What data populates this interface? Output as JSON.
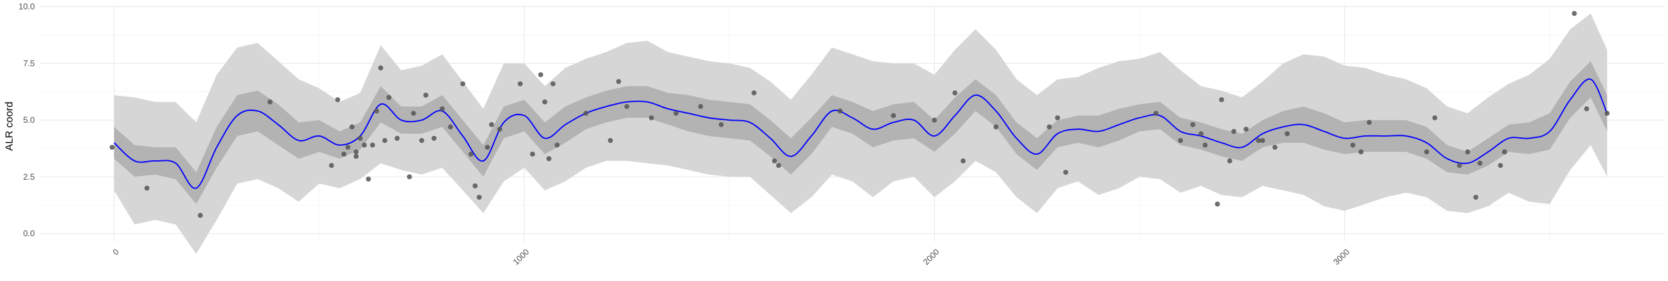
{
  "chart_data": {
    "type": "scatter",
    "title": "",
    "xlabel": "",
    "ylabel": "ALR coord",
    "xlim": [
      -180,
      3780
    ],
    "ylim": [
      -0.35,
      10.05
    ],
    "x_ticks": [
      0,
      1000,
      2000,
      3000
    ],
    "x_tick_labels": [
      "0",
      "1000",
      "2000",
      "3000"
    ],
    "y_ticks": [
      0.0,
      2.5,
      5.0,
      7.5,
      10.0
    ],
    "y_tick_labels": [
      "0.0",
      "2.5",
      "5.0",
      "7.5",
      "10.0"
    ],
    "grid": true,
    "legend": "none",
    "colors": {
      "line": "#0000ff",
      "inner_band": "#b3b3b3",
      "outer_band": "#d6d6d6",
      "points": "#555555",
      "grid_major": "#ebebeb",
      "grid_minor": "#f5f5f5",
      "tick_text": "#4d4d4d"
    },
    "series": [
      {
        "kind": "points",
        "x": [
          -5,
          80,
          210,
          380,
          530,
          545,
          560,
          570,
          580,
          590,
          590,
          600,
          610,
          620,
          630,
          640,
          650,
          660,
          670,
          690,
          720,
          730,
          750,
          760,
          780,
          800,
          820,
          850,
          870,
          880,
          890,
          910,
          920,
          940,
          990,
          1020,
          1040,
          1050,
          1060,
          1070,
          1080,
          1150,
          1210,
          1230,
          1250,
          1310,
          1370,
          1430,
          1480,
          1560,
          1610,
          1620,
          1770,
          1900,
          2000,
          2050,
          2070,
          2150,
          2280,
          2300,
          2320,
          2540,
          2600,
          2630,
          2650,
          2660,
          2690,
          2700,
          2720,
          2730,
          2760,
          2790,
          2800,
          2830,
          2860,
          3020,
          3040,
          3060,
          3200,
          3220,
          3280,
          3300,
          3320,
          3330,
          3380,
          3390,
          3560,
          3590,
          3640
        ],
        "y": [
          3.8,
          2.0,
          0.8,
          5.8,
          3.0,
          5.9,
          3.5,
          3.8,
          4.7,
          3.4,
          3.6,
          4.2,
          3.9,
          2.4,
          3.9,
          5.4,
          7.3,
          4.1,
          6.0,
          4.2,
          2.5,
          5.3,
          4.1,
          6.1,
          4.2,
          5.5,
          4.7,
          6.6,
          3.5,
          2.1,
          1.6,
          3.8,
          4.8,
          4.6,
          6.6,
          3.5,
          7.0,
          5.8,
          3.3,
          6.6,
          3.9,
          5.3,
          4.1,
          6.7,
          5.6,
          5.1,
          5.3,
          5.6,
          4.8,
          6.2,
          3.2,
          3.0,
          5.4,
          5.2,
          5.0,
          6.2,
          3.2,
          4.7,
          4.7,
          5.1,
          2.7,
          5.3,
          4.1,
          4.8,
          4.4,
          3.9,
          1.3,
          5.9,
          3.2,
          4.5,
          4.6,
          4.1,
          4.1,
          3.8,
          4.4,
          3.9,
          3.6,
          4.9,
          3.6,
          5.1,
          3.0,
          3.6,
          1.6,
          3.1,
          3.0,
          3.6,
          9.7,
          5.5,
          5.3
        ]
      },
      {
        "kind": "line",
        "x": [
          0,
          50,
          100,
          150,
          200,
          250,
          300,
          350,
          400,
          450,
          500,
          550,
          600,
          650,
          700,
          750,
          800,
          850,
          900,
          950,
          1000,
          1050,
          1100,
          1150,
          1200,
          1250,
          1300,
          1350,
          1400,
          1450,
          1500,
          1550,
          1600,
          1650,
          1700,
          1750,
          1800,
          1850,
          1900,
          1950,
          2000,
          2050,
          2100,
          2150,
          2200,
          2250,
          2300,
          2350,
          2400,
          2450,
          2500,
          2550,
          2600,
          2650,
          2700,
          2750,
          2800,
          2850,
          2900,
          2950,
          3000,
          3050,
          3100,
          3150,
          3200,
          3250,
          3300,
          3350,
          3400,
          3450,
          3500,
          3550,
          3600,
          3640
        ],
        "y": [
          4.0,
          3.2,
          3.2,
          3.1,
          2.0,
          3.8,
          5.2,
          5.4,
          4.8,
          4.1,
          4.3,
          3.9,
          4.3,
          5.7,
          5.0,
          5.0,
          5.4,
          4.3,
          3.2,
          4.9,
          5.2,
          4.2,
          4.8,
          5.3,
          5.6,
          5.8,
          5.8,
          5.5,
          5.3,
          5.1,
          5.0,
          4.9,
          4.2,
          3.4,
          4.3,
          5.4,
          5.1,
          4.6,
          4.9,
          5.0,
          4.3,
          5.2,
          6.1,
          5.4,
          4.2,
          3.5,
          4.4,
          4.6,
          4.5,
          4.8,
          5.1,
          5.2,
          4.5,
          4.3,
          4.0,
          3.8,
          4.4,
          4.7,
          4.8,
          4.5,
          4.2,
          4.3,
          4.3,
          4.3,
          4.0,
          3.3,
          3.1,
          3.6,
          4.2,
          4.2,
          4.5,
          5.9,
          6.8,
          5.3
        ]
      },
      {
        "kind": "band",
        "name_level": "inner",
        "x": [
          0,
          50,
          100,
          150,
          200,
          250,
          300,
          350,
          400,
          450,
          500,
          550,
          600,
          650,
          700,
          750,
          800,
          850,
          900,
          950,
          1000,
          1050,
          1100,
          1150,
          1200,
          1250,
          1300,
          1350,
          1400,
          1450,
          1500,
          1550,
          1600,
          1650,
          1700,
          1750,
          1800,
          1850,
          1900,
          1950,
          2000,
          2050,
          2100,
          2150,
          2200,
          2250,
          2300,
          2350,
          2400,
          2450,
          2500,
          2550,
          2600,
          2650,
          2700,
          2750,
          2800,
          2850,
          2900,
          2950,
          3000,
          3050,
          3100,
          3150,
          3200,
          3250,
          3300,
          3350,
          3400,
          3450,
          3500,
          3550,
          3600,
          3640
        ],
        "lower": [
          3.3,
          2.5,
          2.6,
          2.4,
          1.3,
          2.9,
          4.3,
          4.5,
          3.9,
          3.3,
          3.6,
          3.3,
          3.7,
          4.9,
          4.4,
          4.4,
          4.7,
          3.6,
          2.5,
          4.2,
          4.5,
          3.5,
          4.0,
          4.6,
          4.9,
          5.1,
          5.1,
          4.8,
          4.5,
          4.3,
          4.2,
          4.1,
          3.4,
          2.6,
          3.5,
          4.7,
          4.4,
          3.8,
          4.1,
          4.2,
          3.6,
          4.4,
          5.4,
          4.7,
          3.5,
          2.8,
          3.8,
          4.0,
          3.8,
          4.1,
          4.5,
          4.6,
          3.9,
          3.7,
          3.4,
          3.2,
          3.8,
          4.0,
          4.0,
          3.7,
          3.5,
          3.6,
          3.6,
          3.6,
          3.3,
          2.7,
          2.6,
          3.0,
          3.6,
          3.5,
          3.7,
          5.1,
          6.0,
          4.5
        ],
        "upper": [
          4.7,
          3.9,
          3.8,
          3.8,
          2.7,
          4.7,
          6.1,
          6.3,
          5.7,
          4.9,
          5.0,
          4.5,
          4.9,
          6.5,
          5.6,
          5.6,
          6.1,
          5.0,
          3.9,
          5.6,
          5.9,
          4.9,
          5.6,
          6.0,
          6.3,
          6.5,
          6.5,
          6.2,
          6.1,
          5.9,
          5.8,
          5.7,
          5.0,
          4.2,
          5.1,
          6.1,
          5.8,
          5.4,
          5.7,
          5.8,
          5.0,
          6.0,
          6.8,
          6.1,
          4.9,
          4.2,
          5.0,
          5.2,
          5.2,
          5.5,
          5.7,
          5.8,
          5.1,
          4.9,
          4.6,
          4.4,
          5.0,
          5.4,
          5.6,
          5.3,
          4.9,
          5.0,
          5.0,
          5.0,
          4.7,
          3.9,
          3.6,
          4.2,
          4.8,
          4.9,
          5.3,
          6.7,
          7.6,
          6.1
        ]
      },
      {
        "kind": "band",
        "name_level": "outer",
        "x": [
          0,
          50,
          100,
          150,
          200,
          250,
          300,
          350,
          400,
          450,
          500,
          550,
          600,
          650,
          700,
          750,
          800,
          850,
          900,
          950,
          1000,
          1050,
          1100,
          1150,
          1200,
          1250,
          1300,
          1350,
          1400,
          1450,
          1500,
          1550,
          1600,
          1650,
          1700,
          1750,
          1800,
          1850,
          1900,
          1950,
          2000,
          2050,
          2100,
          2150,
          2200,
          2250,
          2300,
          2350,
          2400,
          2450,
          2500,
          2550,
          2600,
          2650,
          2700,
          2750,
          2800,
          2850,
          2900,
          2950,
          3000,
          3050,
          3100,
          3150,
          3200,
          3250,
          3300,
          3350,
          3400,
          3450,
          3500,
          3550,
          3600,
          3640
        ],
        "lower": [
          1.9,
          0.4,
          0.6,
          0.4,
          -0.9,
          0.6,
          2.2,
          2.4,
          2.0,
          1.4,
          2.2,
          2.0,
          2.4,
          3.1,
          2.8,
          2.6,
          2.9,
          1.9,
          0.9,
          2.3,
          2.9,
          1.9,
          2.3,
          2.9,
          3.2,
          3.2,
          3.1,
          3.0,
          2.8,
          2.6,
          2.5,
          2.5,
          1.7,
          0.9,
          1.6,
          2.6,
          2.3,
          1.6,
          2.3,
          2.5,
          1.6,
          2.3,
          3.2,
          2.7,
          1.6,
          0.9,
          2.0,
          2.3,
          1.7,
          2.0,
          2.5,
          2.4,
          1.8,
          2.1,
          1.7,
          1.6,
          2.1,
          1.9,
          1.7,
          1.2,
          1.0,
          1.3,
          1.6,
          1.8,
          1.6,
          1.0,
          0.9,
          1.2,
          1.8,
          1.4,
          1.3,
          2.8,
          3.9,
          2.5
        ],
        "upper": [
          6.1,
          6.0,
          5.8,
          5.8,
          4.9,
          7.0,
          8.2,
          8.4,
          7.6,
          6.8,
          6.4,
          5.8,
          6.2,
          8.3,
          7.2,
          7.4,
          7.9,
          6.7,
          5.5,
          7.5,
          7.5,
          6.5,
          7.3,
          7.7,
          8.0,
          8.4,
          8.5,
          8.0,
          7.8,
          7.6,
          7.5,
          7.3,
          6.7,
          5.9,
          7.0,
          8.2,
          7.9,
          7.6,
          7.5,
          7.5,
          7.0,
          8.1,
          9.0,
          8.1,
          6.8,
          6.1,
          6.8,
          6.9,
          7.3,
          7.6,
          7.7,
          8.0,
          7.2,
          6.5,
          6.3,
          6.0,
          6.7,
          7.5,
          7.9,
          7.8,
          7.4,
          7.3,
          7.0,
          6.8,
          6.4,
          5.6,
          5.3,
          6.0,
          6.6,
          7.0,
          7.7,
          9.0,
          9.7,
          8.1
        ]
      }
    ]
  }
}
